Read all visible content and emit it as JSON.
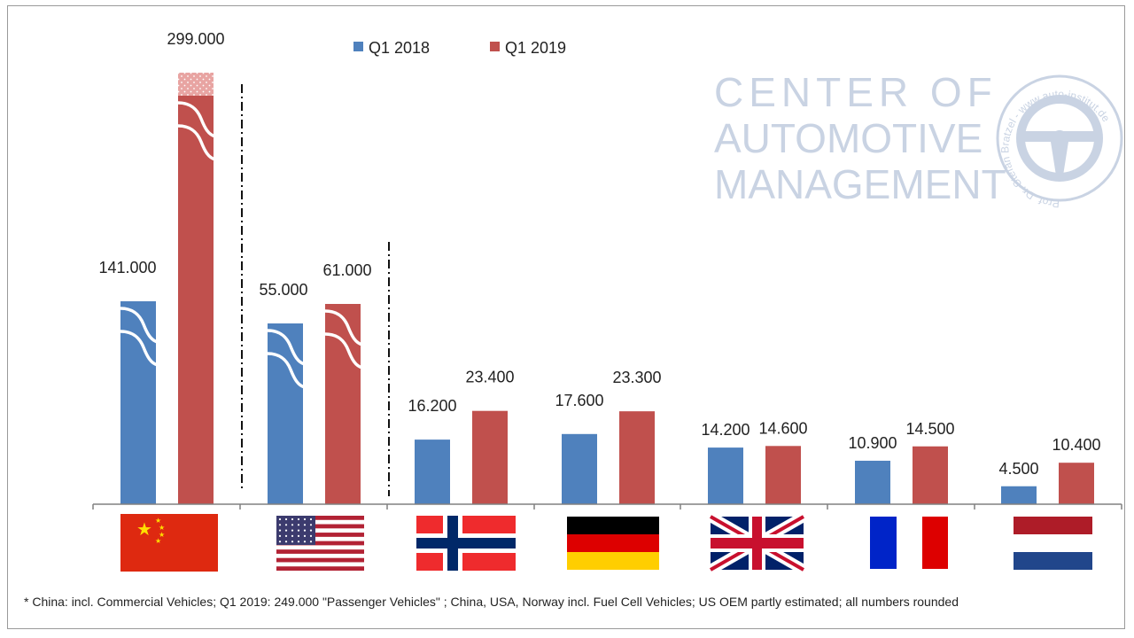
{
  "chart_data": {
    "type": "bar",
    "title": "",
    "xlabel": "",
    "ylabel": "",
    "axis_broken_for": [
      "China",
      "USA"
    ],
    "categories": [
      "China",
      "USA",
      "Norway",
      "Germany",
      "United Kingdom",
      "France",
      "Netherlands"
    ],
    "series": [
      {
        "name": "Q1 2018",
        "color": "#4f81bd",
        "values": [
          141000,
          55000,
          16200,
          17600,
          14200,
          10900,
          4500
        ]
      },
      {
        "name": "Q1 2019",
        "color": "#c0504d",
        "values": [
          299000,
          61000,
          23400,
          23300,
          14600,
          14500,
          10400
        ]
      }
    ],
    "data_labels": {
      "Q1 2018": [
        "141.000",
        "55.000",
        "16.200",
        "17.600",
        "14.200",
        "10.900",
        "4.500"
      ],
      "Q1 2019": [
        "299.000",
        "61.000",
        "23.400",
        "23.300",
        "14.600",
        "14.500",
        "10.400"
      ]
    },
    "legend": {
      "position": "top",
      "entries": [
        "Q1 2018",
        "Q1 2019"
      ]
    }
  },
  "logo": {
    "line1": "CENTER OF",
    "line2": "AUTOMOTIVE",
    "line3": "MANAGEMENT",
    "seal_text": "Prof. Dr. Stefan Bratzel - www.auto-institut.de",
    "color": "#c9d3e3"
  },
  "footnote": "* China: incl. Commercial Vehicles; Q1 2019: 249.000 \"Passenger Vehicles\" ; China, USA, Norway incl. Fuel Cell Vehicles; US OEM partly estimated; all numbers rounded"
}
